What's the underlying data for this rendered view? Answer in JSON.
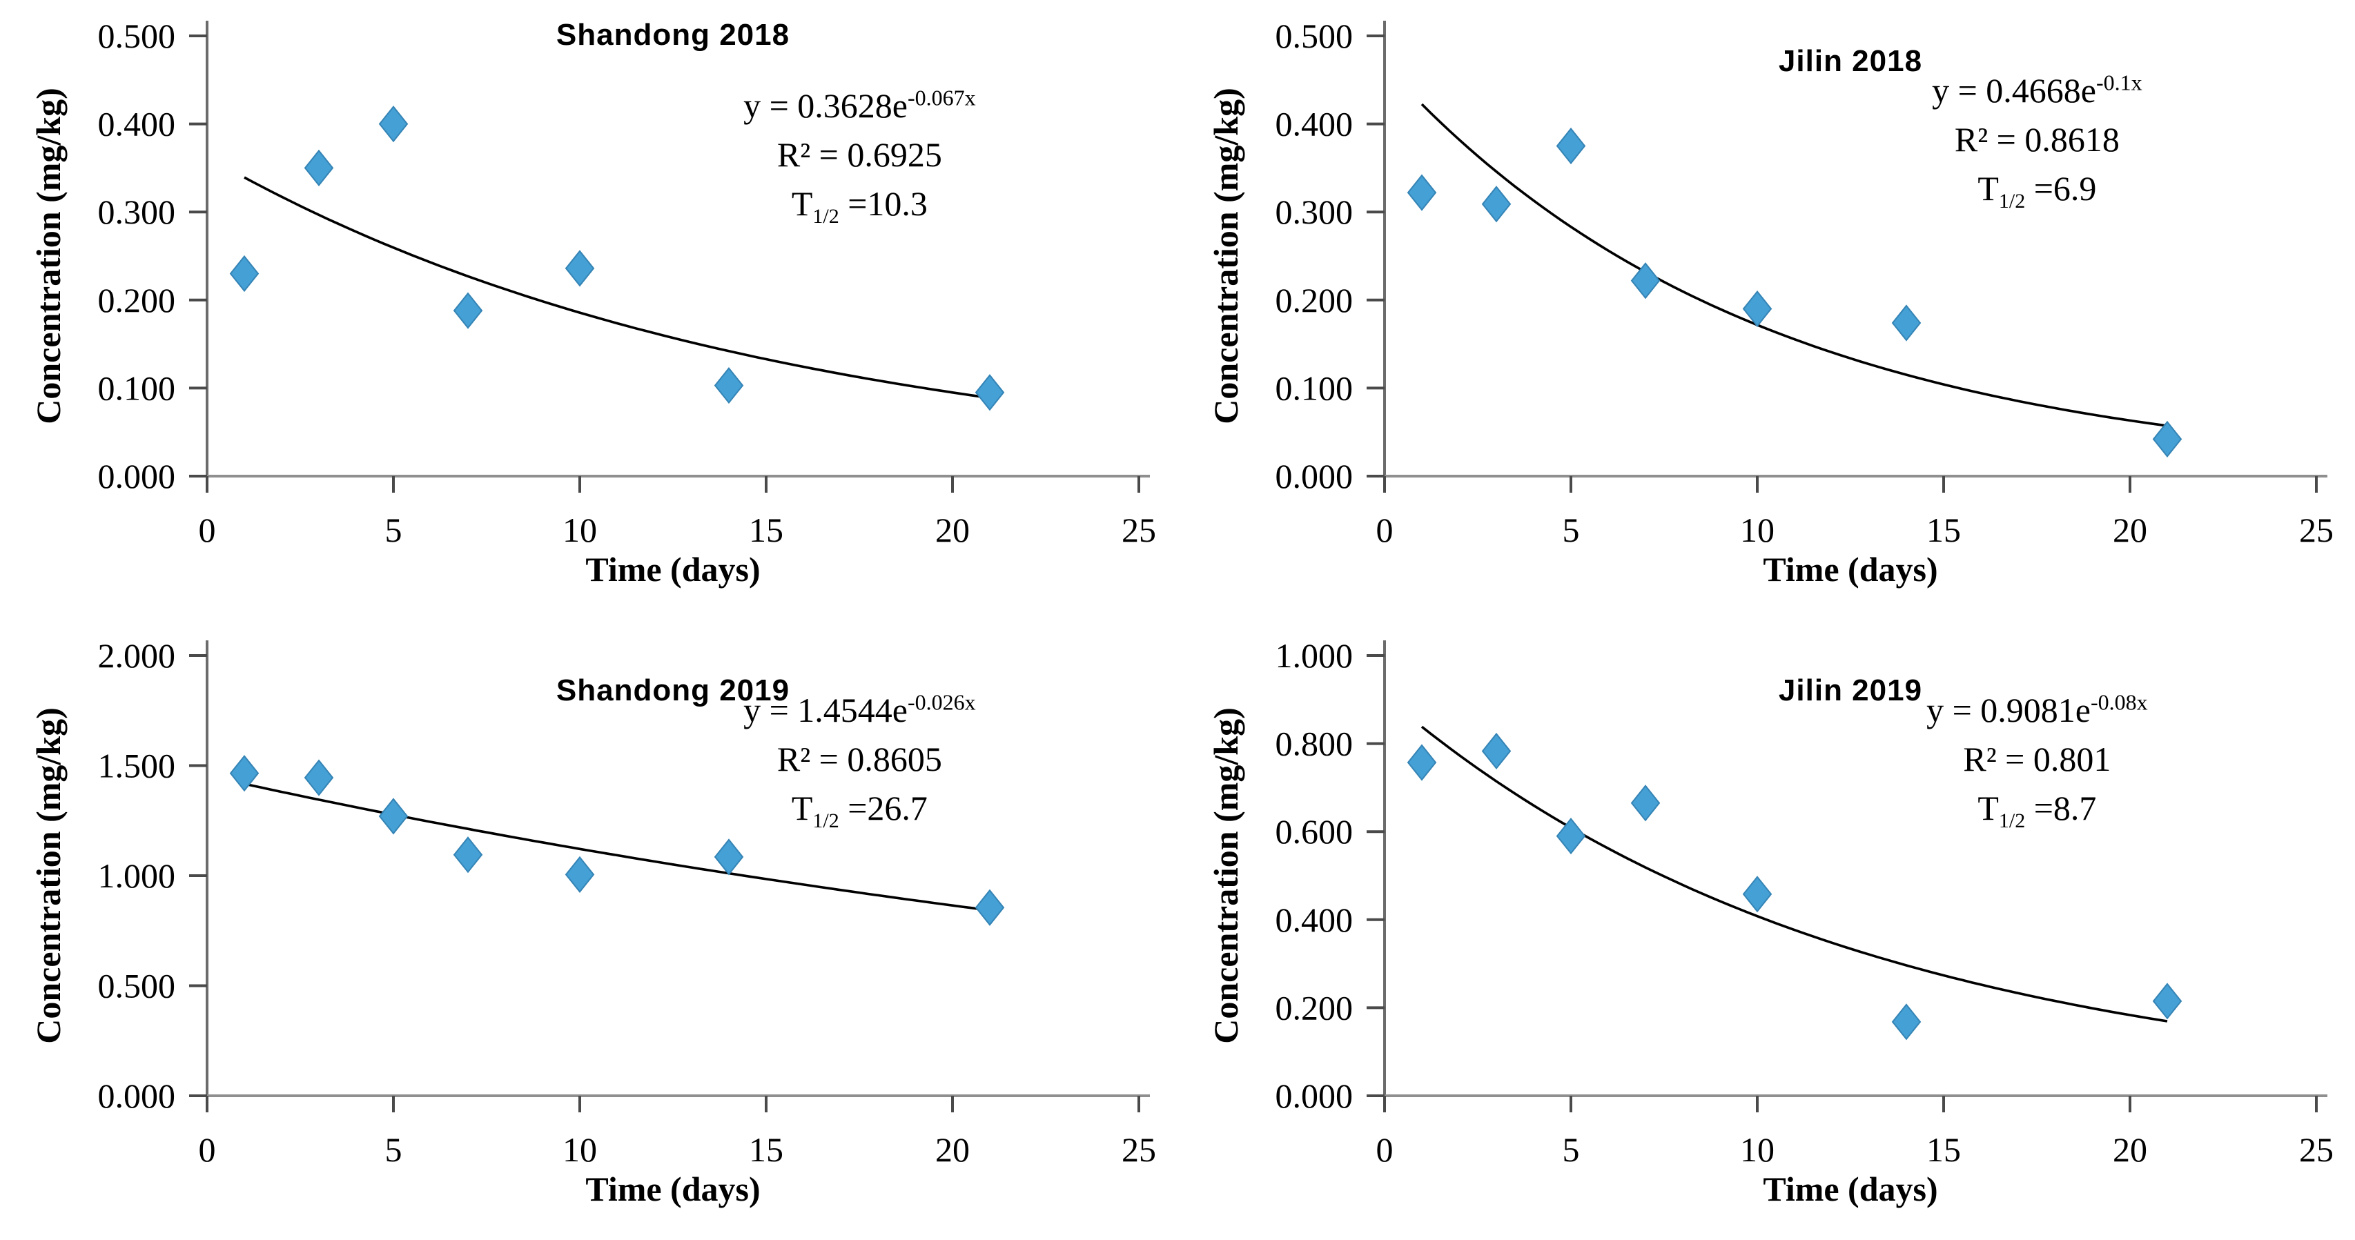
{
  "figure": {
    "marker_color": "#44a0d5",
    "marker_edge_color": "#3584b5",
    "curve_color": "#000000",
    "x_axis_color": "#8f8f8f",
    "y_axis_color": "#6b6b6b",
    "tick_color": "#4a4a4a",
    "panels": [
      {
        "id": "shandong-2018",
        "title": "Shandong 2018",
        "ylabel": "Concentration (mg/kg)",
        "xlabel": "Time (days)",
        "annotation": {
          "eq_base": "y = 0.3628e",
          "eq_exp": "-0.067x",
          "r2": "R² = 0.6925",
          "t_base": "T",
          "t_sub": "1/2",
          "t_rest": " =10.3"
        }
      },
      {
        "id": "jilin-2018",
        "title": "Jilin 2018",
        "ylabel": "Concentration (mg/kg)",
        "xlabel": "Time (days)",
        "annotation": {
          "eq_base": "y = 0.4668e",
          "eq_exp": "-0.1x",
          "r2": "R² = 0.8618",
          "t_base": "T",
          "t_sub": "1/2",
          "t_rest": " =6.9"
        }
      },
      {
        "id": "shandong-2019",
        "title": "Shandong 2019",
        "ylabel": "Concentration (mg/kg)",
        "xlabel": "Time (days)",
        "annotation": {
          "eq_base": "y = 1.4544e",
          "eq_exp": "-0.026x",
          "r2": "R² = 0.8605",
          "t_base": "T",
          "t_sub": "1/2",
          "t_rest": " =26.7"
        }
      },
      {
        "id": "jilin-2019",
        "title": "Jilin 2019",
        "ylabel": "Concentration (mg/kg)",
        "xlabel": "Time (days)",
        "annotation": {
          "eq_base": "y = 0.9081e",
          "eq_exp": "-0.08x",
          "r2": "R² = 0.801",
          "t_base": "T",
          "t_sub": "1/2",
          "t_rest": " =8.7"
        }
      }
    ]
  },
  "chart_data": [
    {
      "type": "scatter",
      "title": "Shandong 2018",
      "xlabel": "Time (days)",
      "ylabel": "Concentration (mg/kg)",
      "x": [
        1,
        3,
        5,
        7,
        10,
        14,
        21
      ],
      "y": [
        0.23,
        0.35,
        0.4,
        0.188,
        0.236,
        0.103,
        0.095
      ],
      "fit": {
        "equation": "y = 0.3628e^(-0.067x)",
        "a": 0.3628,
        "b": -0.067,
        "r2": 0.6925,
        "t_half": 10.3,
        "x_range": [
          1,
          21
        ]
      },
      "xlim": [
        0,
        25
      ],
      "ylim": [
        0,
        0.5
      ],
      "xticks": [
        0,
        5,
        10,
        15,
        20,
        25
      ],
      "xtick_labels": [
        "0",
        "5",
        "10",
        "15",
        "20",
        "25"
      ],
      "yticks": [
        0,
        0.1,
        0.2,
        0.3,
        0.4,
        0.5
      ],
      "ytick_labels": [
        "0.000",
        "0.100",
        "0.200",
        "0.300",
        "0.400",
        "0.500"
      ],
      "grid": false,
      "legend": false,
      "marker": "diamond"
    },
    {
      "type": "scatter",
      "title": "Jilin 2018",
      "xlabel": "Time (days)",
      "ylabel": "Concentration (mg/kg)",
      "x": [
        1,
        3,
        5,
        7,
        10,
        14,
        21
      ],
      "y": [
        0.322,
        0.309,
        0.375,
        0.222,
        0.19,
        0.174,
        0.042
      ],
      "fit": {
        "equation": "y = 0.4668e^(-0.1x)",
        "a": 0.4668,
        "b": -0.1,
        "r2": 0.8618,
        "t_half": 6.9,
        "x_range": [
          1,
          21
        ]
      },
      "xlim": [
        0,
        25
      ],
      "ylim": [
        0,
        0.5
      ],
      "xticks": [
        0,
        5,
        10,
        15,
        20,
        25
      ],
      "xtick_labels": [
        "0",
        "5",
        "10",
        "15",
        "20",
        "25"
      ],
      "yticks": [
        0,
        0.1,
        0.2,
        0.3,
        0.4,
        0.5
      ],
      "ytick_labels": [
        "0.000",
        "0.100",
        "0.200",
        "0.300",
        "0.400",
        "0.500"
      ],
      "grid": false,
      "legend": false,
      "marker": "diamond"
    },
    {
      "type": "scatter",
      "title": "Shandong 2019",
      "xlabel": "Time (days)",
      "ylabel": "Concentration (mg/kg)",
      "x": [
        1,
        3,
        5,
        7,
        10,
        14,
        21
      ],
      "y": [
        1.465,
        1.445,
        1.27,
        1.095,
        1.005,
        1.085,
        0.855
      ],
      "fit": {
        "equation": "y = 1.4544e^(-0.026x)",
        "a": 1.4544,
        "b": -0.026,
        "r2": 0.8605,
        "t_half": 26.7,
        "x_range": [
          1,
          21
        ]
      },
      "xlim": [
        0,
        25
      ],
      "ylim": [
        0,
        2.0
      ],
      "xticks": [
        0,
        5,
        10,
        15,
        20,
        25
      ],
      "xtick_labels": [
        "0",
        "5",
        "10",
        "15",
        "20",
        "25"
      ],
      "yticks": [
        0,
        0.5,
        1.0,
        1.5,
        2.0
      ],
      "ytick_labels": [
        "0.000",
        "0.500",
        "1.000",
        "1.500",
        "2.000"
      ],
      "grid": false,
      "legend": false,
      "marker": "diamond"
    },
    {
      "type": "scatter",
      "title": "Jilin 2019",
      "xlabel": "Time (days)",
      "ylabel": "Concentration (mg/kg)",
      "x": [
        1,
        3,
        5,
        7,
        10,
        14,
        21
      ],
      "y": [
        0.757,
        0.783,
        0.59,
        0.665,
        0.458,
        0.168,
        0.215
      ],
      "fit": {
        "equation": "y = 0.9081e^(-0.08x)",
        "a": 0.9081,
        "b": -0.08,
        "r2": 0.801,
        "t_half": 8.7,
        "x_range": [
          1,
          21
        ]
      },
      "xlim": [
        0,
        25
      ],
      "ylim": [
        0,
        1.0
      ],
      "xticks": [
        0,
        5,
        10,
        15,
        20,
        25
      ],
      "xtick_labels": [
        "0",
        "5",
        "10",
        "15",
        "20",
        "25"
      ],
      "yticks": [
        0,
        0.2,
        0.4,
        0.6,
        0.8,
        1.0
      ],
      "ytick_labels": [
        "0.000",
        "0.200",
        "0.400",
        "0.600",
        "0.800",
        "1.000"
      ],
      "grid": false,
      "legend": false,
      "marker": "diamond"
    }
  ]
}
